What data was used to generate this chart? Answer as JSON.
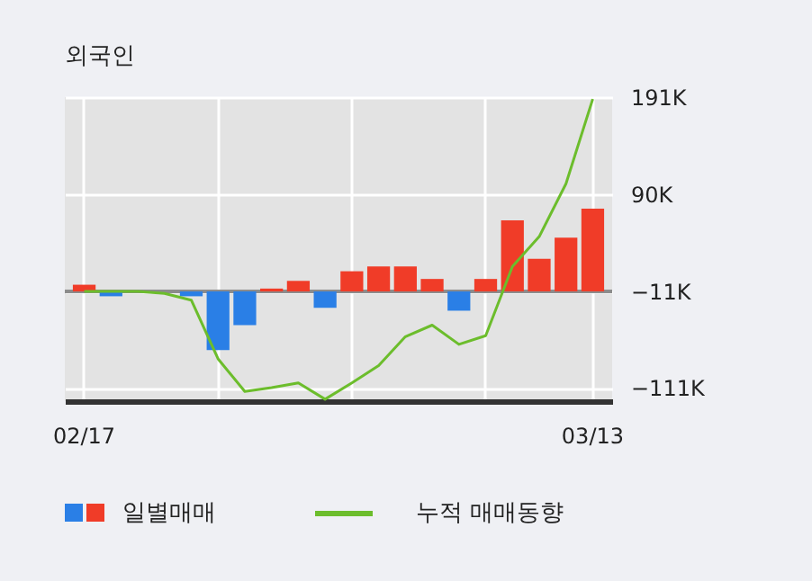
{
  "chart_data": {
    "type": "bar",
    "title": "외국인",
    "categories": [
      "02/17",
      null,
      null,
      null,
      null,
      null,
      null,
      null,
      null,
      null,
      null,
      null,
      null,
      null,
      null,
      null,
      null,
      null,
      null,
      "03/13"
    ],
    "series": [
      {
        "name": "일별매매",
        "colors": [
          "#f03c28",
          "#2a7fe6",
          "#f03c28",
          "#2a7fe6",
          "#2a7fe6",
          "#2a7fe6",
          "#2a7fe6",
          "#f03c28",
          "#f03c28",
          "#2a7fe6",
          "#f03c28",
          "#f03c28",
          "#f03c28",
          "#f03c28",
          "#2a7fe6",
          "#f03c28",
          "#f03c28",
          "#f03c28",
          "#f03c28",
          "#f03c28"
        ],
        "values": [
          7,
          -5,
          null,
          null,
          -5,
          -61,
          -35,
          3,
          11,
          -17,
          21,
          26,
          26,
          13,
          -20,
          13,
          74,
          34,
          56,
          86
        ],
        "base": [
          -11,
          -11,
          null,
          null,
          -11,
          -11,
          -11,
          -11,
          -11,
          -11,
          -11,
          -11,
          -11,
          -11,
          -11,
          -11,
          -11,
          -11,
          -11,
          -11
        ]
      },
      {
        "name": "누적 매매동향",
        "type": "line",
        "color": "#6cbd2c",
        "values": [
          -11,
          -11,
          -11,
          -13,
          -20,
          -81,
          -115,
          -111,
          -106,
          -123,
          -106,
          -88,
          -58,
          -46,
          -66,
          -57,
          15,
          46,
          101,
          189
        ]
      }
    ],
    "ylim": [
      -125,
      191
    ],
    "yticks": [
      {
        "value": 191,
        "label": "191K"
      },
      {
        "value": 90,
        "label": "90K"
      },
      {
        "value": -11,
        "label": "−11K"
      },
      {
        "value": -111,
        "label": "−111K"
      }
    ],
    "ref_lines": [
      {
        "axis": "y",
        "value": -11,
        "color": "#8c8c8c"
      }
    ],
    "grid": true,
    "legend": "bottom"
  }
}
